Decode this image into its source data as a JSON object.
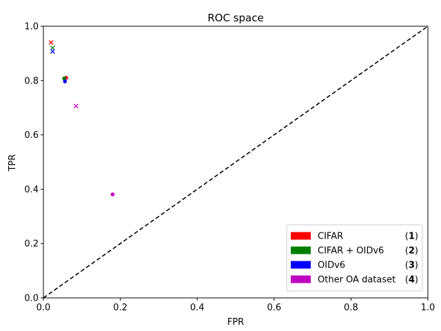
{
  "chart_data": {
    "type": "scatter",
    "title": "ROC space",
    "xlabel": "FPR",
    "ylabel": "TPR",
    "xlim": [
      0,
      1
    ],
    "ylim": [
      0,
      1
    ],
    "xticks": [
      "0.0",
      "0.2",
      "0.4",
      "0.6",
      "0.8",
      "1.0"
    ],
    "yticks": [
      "0.0",
      "0.2",
      "0.4",
      "0.6",
      "0.8",
      "1.0"
    ],
    "grid": false,
    "legend_position": "bottom-right",
    "diagonal": {
      "from": [
        0,
        0
      ],
      "to": [
        1,
        1
      ],
      "style": "dashed"
    },
    "legend": [
      {
        "label": "CIFAR",
        "tag": "1",
        "color": "#ff0000"
      },
      {
        "label": "CIFAR + OIDv6",
        "tag": "2",
        "color": "#008000"
      },
      {
        "label": "OIDv6",
        "tag": "3",
        "color": "#0000ff"
      },
      {
        "label": "Other OA dataset",
        "tag": "4",
        "color": "#bf00bf"
      }
    ],
    "series": [
      {
        "legend": "CIFAR",
        "color": "#ff0000",
        "points": [
          {
            "x": 0.02,
            "y": 0.94,
            "marker": "x"
          },
          {
            "x": 0.059,
            "y": 0.81,
            "marker": "o"
          }
        ]
      },
      {
        "legend": "CIFAR + OIDv6",
        "color": "#008000",
        "points": [
          {
            "x": 0.024,
            "y": 0.92,
            "marker": "x"
          },
          {
            "x": 0.054,
            "y": 0.808,
            "marker": "o"
          }
        ]
      },
      {
        "legend": "OIDv6",
        "color": "#0000ff",
        "points": [
          {
            "x": 0.024,
            "y": 0.907,
            "marker": "x"
          },
          {
            "x": 0.056,
            "y": 0.797,
            "marker": "o"
          }
        ]
      },
      {
        "legend": "Other OA dataset",
        "color": "#bf00bf",
        "points": [
          {
            "x": 0.085,
            "y": 0.706,
            "marker": "x"
          },
          {
            "x": 0.18,
            "y": 0.381,
            "marker": "o"
          }
        ]
      }
    ]
  }
}
